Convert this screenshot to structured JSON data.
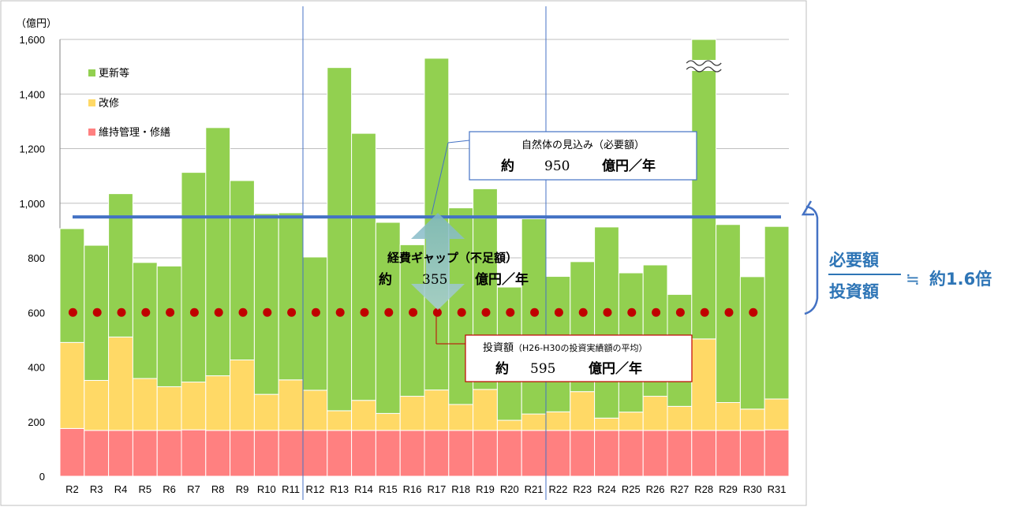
{
  "colors": {
    "renewal": "#92d050",
    "repair": "#ffd966",
    "maintenance": "#ff8080",
    "need_line": "#4472c4",
    "invest_dots": "#c00000",
    "accent_text": "#2e75b6"
  },
  "chart_data": {
    "type": "bar",
    "stacked": true,
    "unit_label": "（億円）",
    "categories": [
      "R2",
      "R3",
      "R4",
      "R5",
      "R6",
      "R7",
      "R8",
      "R9",
      "R10",
      "R11",
      "R12",
      "R13",
      "R14",
      "R15",
      "R16",
      "R17",
      "R18",
      "R19",
      "R20",
      "R21",
      "R22",
      "R23",
      "R24",
      "R25",
      "R26",
      "R27",
      "R28",
      "R29",
      "R30",
      "R31"
    ],
    "series": [
      {
        "name": "維持管理・修繕",
        "key": "maintenance",
        "values": [
          175,
          168,
          168,
          168,
          168,
          170,
          168,
          168,
          168,
          168,
          168,
          168,
          168,
          168,
          168,
          168,
          168,
          168,
          168,
          168,
          168,
          168,
          168,
          168,
          168,
          168,
          168,
          168,
          168,
          170
        ]
      },
      {
        "name": "改修",
        "key": "repair",
        "values": [
          315,
          183,
          342,
          190,
          160,
          175,
          200,
          258,
          132,
          185,
          147,
          72,
          110,
          62,
          125,
          148,
          95,
          150,
          37,
          60,
          68,
          142,
          45,
          67,
          125,
          88,
          335,
          102,
          78,
          113
        ]
      },
      {
        "name": "更新等",
        "key": "renewal",
        "values": [
          417,
          495,
          525,
          425,
          442,
          768,
          909,
          657,
          662,
          612,
          488,
          1257,
          978,
          700,
          555,
          1215,
          720,
          735,
          488,
          715,
          496,
          476,
          700,
          510,
          481,
          410,
          1097,
          652,
          485,
          632
        ]
      }
    ],
    "ylim": [
      0,
      1600
    ],
    "yticks": [
      0,
      200,
      400,
      600,
      800,
      1000,
      1200,
      1400,
      1600
    ],
    "ytick_labels": [
      "0",
      "200",
      "400",
      "600",
      "800",
      "1,000",
      "1,200",
      "1,400",
      "1,600"
    ],
    "truncated_category": "R28",
    "reference_lines": {
      "need": {
        "value": 950
      },
      "investment": {
        "value": 600
      }
    },
    "legend": {
      "placement": "top-left",
      "entries": [
        "更新等",
        "改修",
        "維持管理・修繕"
      ]
    },
    "grid": true,
    "vertical_dividers_after": [
      "R11",
      "R21"
    ]
  },
  "annotations": {
    "need_box": {
      "line1": "自然体の見込み（必要額）",
      "prefix": "約",
      "value": "950",
      "suffix": "億円／年"
    },
    "gap": {
      "line1": "経費ギャップ（不足額）",
      "prefix": "約",
      "value": "355",
      "suffix": "億円／年"
    },
    "invest_box": {
      "line1_main": "投資額",
      "line1_note": "（H26-H30の投資実績額の平均）",
      "prefix": "約",
      "value": "595",
      "suffix": "億円／年"
    },
    "ratio": {
      "numerator": "必要額",
      "denominator": "投資額",
      "approx": "≒",
      "result": "約1.6倍"
    }
  }
}
